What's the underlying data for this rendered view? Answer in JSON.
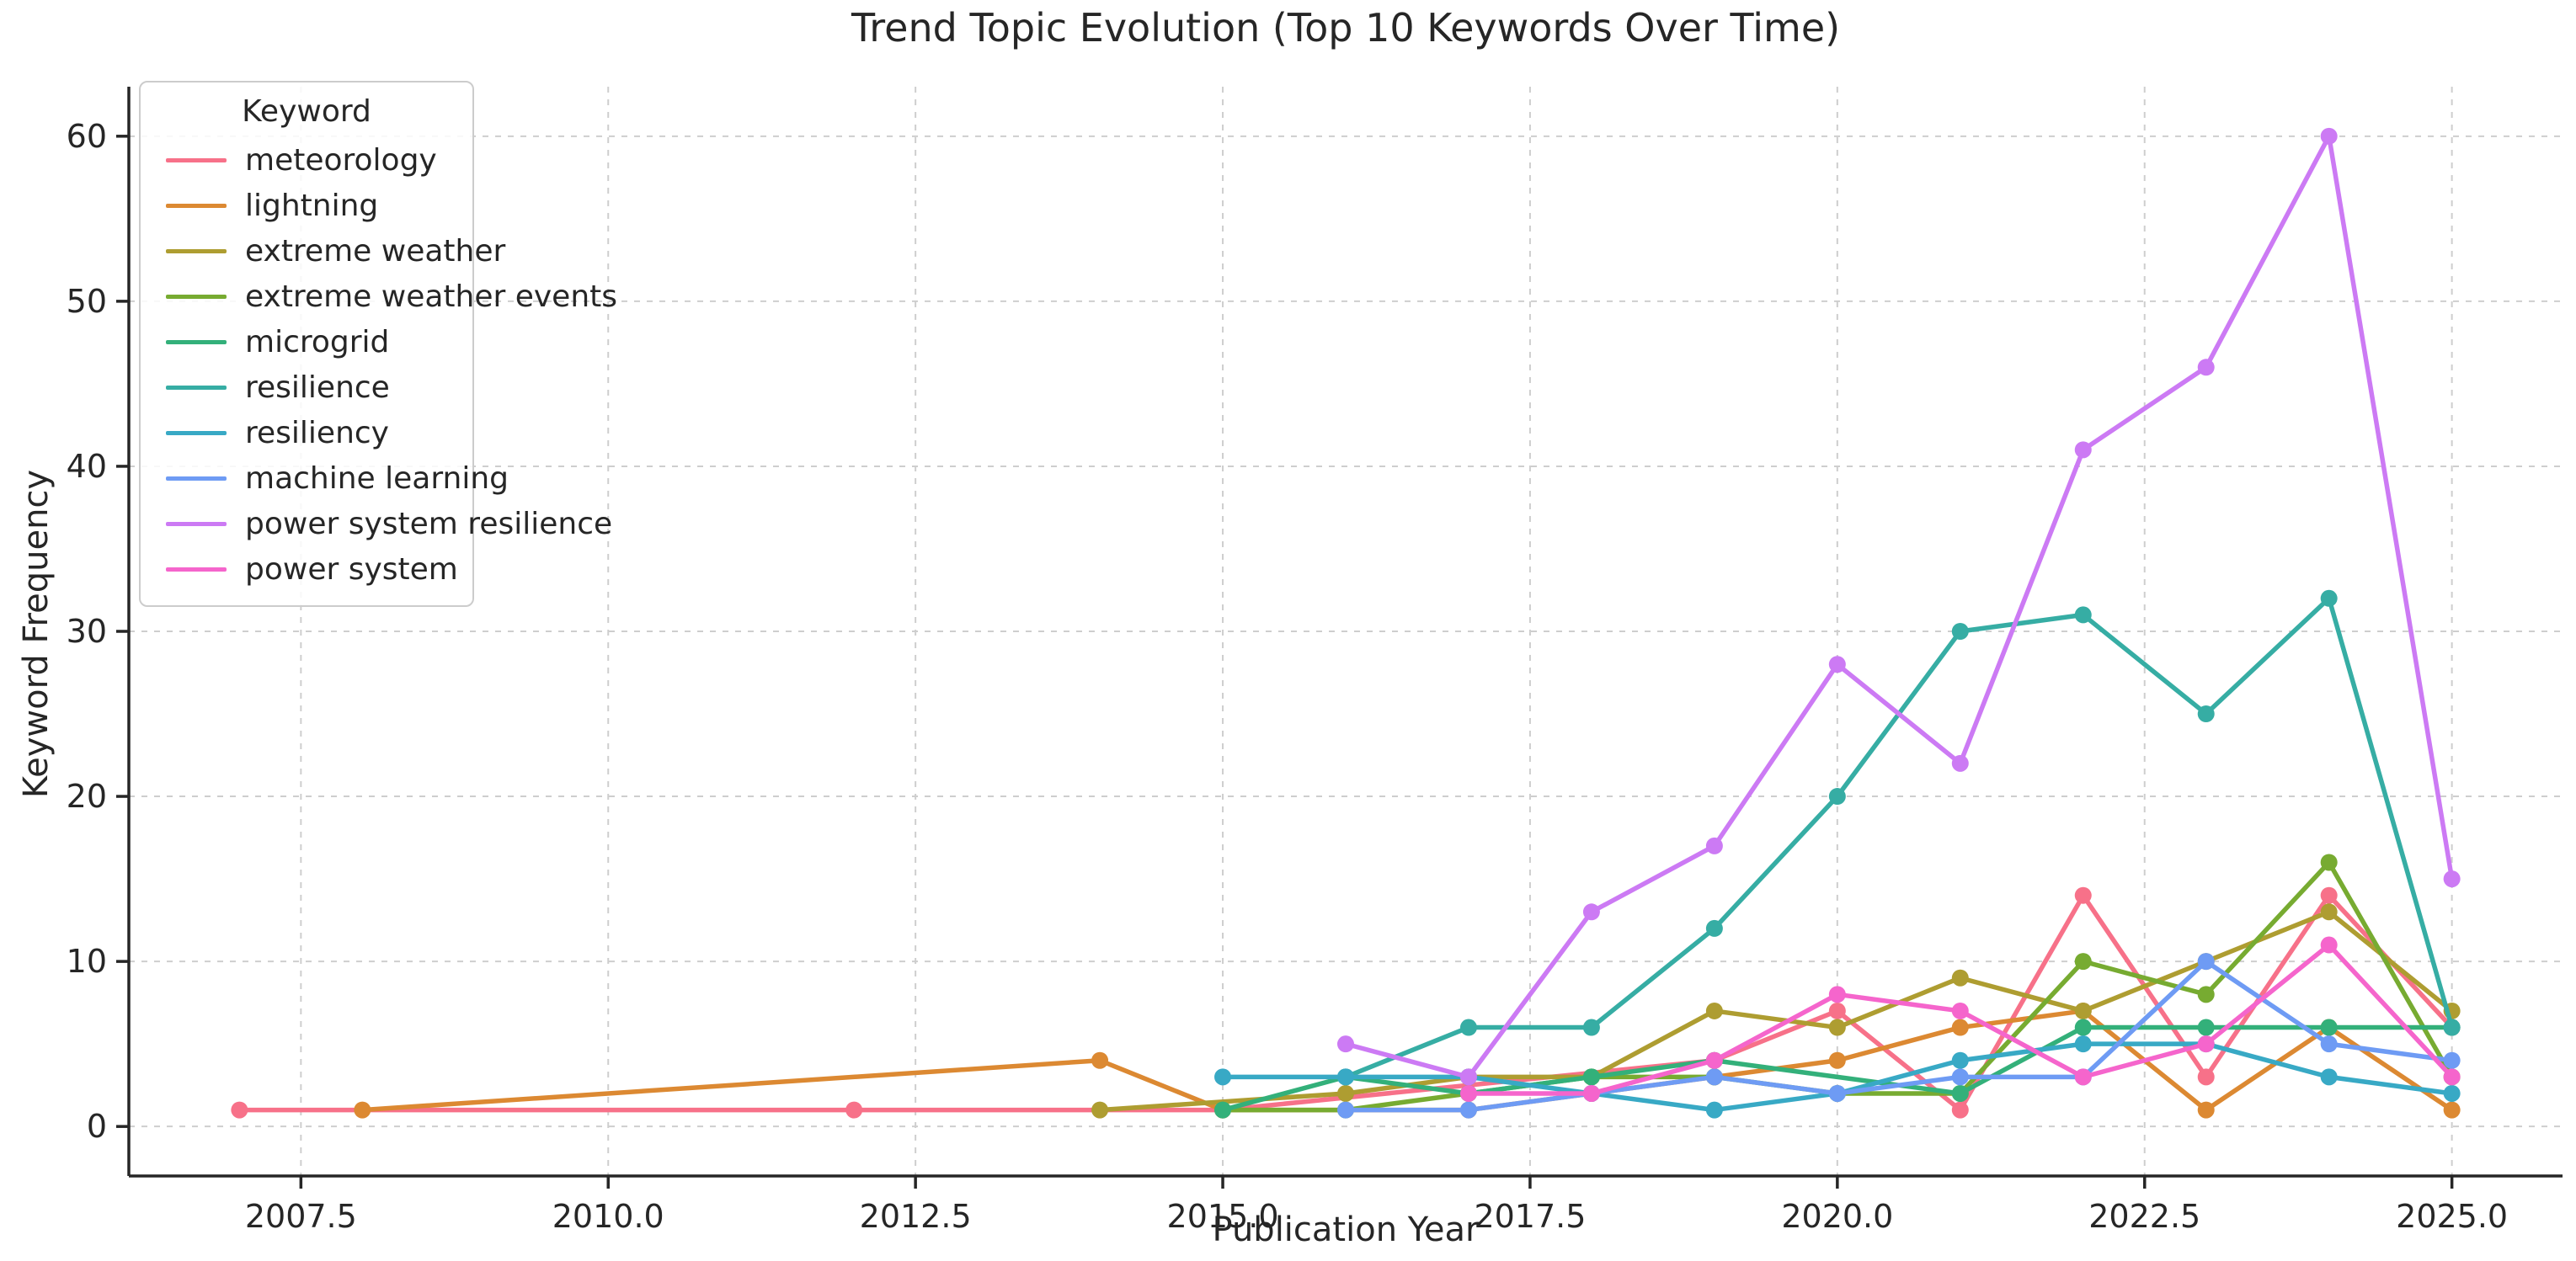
{
  "page": {
    "title": "Trend Topic Evolution (Top 10 Keywords Over Time)"
  },
  "chart_data": {
    "type": "line",
    "title": "Trend Topic Evolution (Top 10 Keywords Over Time)",
    "xlabel": "Publication Year",
    "ylabel": "Keyword Frequency",
    "legend_title": "Keyword",
    "legend_position": "upper left",
    "grid": true,
    "grid_style": "dashed",
    "xlim": [
      2006.1,
      2025.9
    ],
    "ylim": [
      -3,
      63
    ],
    "x_ticks": [
      2007.5,
      2010.0,
      2012.5,
      2015.0,
      2017.5,
      2020.0,
      2022.5,
      2025.0
    ],
    "x_tick_labels": [
      "2007.5",
      "2010.0",
      "2012.5",
      "2015.0",
      "2017.5",
      "2020.0",
      "2022.5",
      "2025.0"
    ],
    "y_ticks": [
      0,
      10,
      20,
      30,
      40,
      50,
      60
    ],
    "y_tick_labels": [
      "0",
      "10",
      "20",
      "30",
      "40",
      "50",
      "60"
    ],
    "series": [
      {
        "name": "meteorology",
        "color": "#f77189",
        "points": [
          [
            2007,
            1
          ],
          [
            2012,
            1
          ],
          [
            2015,
            1
          ],
          [
            2019,
            4
          ],
          [
            2020,
            7
          ],
          [
            2021,
            1
          ],
          [
            2022,
            14
          ],
          [
            2023,
            3
          ],
          [
            2024,
            14
          ],
          [
            2025,
            6
          ]
        ]
      },
      {
        "name": "lightning",
        "color": "#dc8932",
        "points": [
          [
            2008,
            1
          ],
          [
            2014,
            4
          ],
          [
            2015,
            1
          ],
          [
            2017,
            1
          ],
          [
            2018,
            2
          ],
          [
            2019,
            3
          ],
          [
            2020,
            4
          ],
          [
            2021,
            6
          ],
          [
            2022,
            7
          ],
          [
            2023,
            1
          ],
          [
            2024,
            6
          ],
          [
            2025,
            1
          ]
        ]
      },
      {
        "name": "extreme weather",
        "color": "#ae9d31",
        "points": [
          [
            2014,
            1
          ],
          [
            2016,
            2
          ],
          [
            2017,
            3
          ],
          [
            2018,
            3
          ],
          [
            2019,
            7
          ],
          [
            2020,
            6
          ],
          [
            2021,
            9
          ],
          [
            2022,
            7
          ],
          [
            2023,
            10
          ],
          [
            2024,
            13
          ],
          [
            2025,
            7
          ]
        ]
      },
      {
        "name": "extreme weather events",
        "color": "#77ab31",
        "points": [
          [
            2015,
            1
          ],
          [
            2016,
            1
          ],
          [
            2017,
            2
          ],
          [
            2018,
            3
          ],
          [
            2019,
            3
          ],
          [
            2020,
            2
          ],
          [
            2021,
            2
          ],
          [
            2022,
            10
          ],
          [
            2023,
            8
          ],
          [
            2024,
            16
          ],
          [
            2025,
            3
          ]
        ]
      },
      {
        "name": "microgrid",
        "color": "#33b07a",
        "points": [
          [
            2015,
            1
          ],
          [
            2016,
            3
          ],
          [
            2017,
            2
          ],
          [
            2018,
            3
          ],
          [
            2019,
            4
          ],
          [
            2021,
            2
          ],
          [
            2022,
            6
          ],
          [
            2023,
            6
          ],
          [
            2024,
            6
          ],
          [
            2025,
            6
          ]
        ]
      },
      {
        "name": "resilience",
        "color": "#36ada4",
        "points": [
          [
            2016,
            3
          ],
          [
            2017,
            6
          ],
          [
            2018,
            6
          ],
          [
            2019,
            12
          ],
          [
            2020,
            20
          ],
          [
            2021,
            30
          ],
          [
            2022,
            31
          ],
          [
            2023,
            25
          ],
          [
            2024,
            32
          ],
          [
            2025,
            6
          ]
        ]
      },
      {
        "name": "resiliency",
        "color": "#38a9c5",
        "points": [
          [
            2015,
            3
          ],
          [
            2016,
            3
          ],
          [
            2017,
            3
          ],
          [
            2018,
            2
          ],
          [
            2019,
            1
          ],
          [
            2020,
            2
          ],
          [
            2021,
            4
          ],
          [
            2022,
            5
          ],
          [
            2023,
            5
          ],
          [
            2024,
            3
          ],
          [
            2025,
            2
          ]
        ]
      },
      {
        "name": "machine learning",
        "color": "#6e9bf4",
        "points": [
          [
            2016,
            1
          ],
          [
            2017,
            1
          ],
          [
            2018,
            2
          ],
          [
            2019,
            3
          ],
          [
            2020,
            2
          ],
          [
            2021,
            3
          ],
          [
            2022,
            3
          ],
          [
            2023,
            10
          ],
          [
            2024,
            5
          ],
          [
            2025,
            4
          ]
        ]
      },
      {
        "name": "power system resilience",
        "color": "#cc7af4",
        "points": [
          [
            2016,
            5
          ],
          [
            2017,
            3
          ],
          [
            2018,
            13
          ],
          [
            2019,
            17
          ],
          [
            2020,
            28
          ],
          [
            2021,
            22
          ],
          [
            2022,
            41
          ],
          [
            2023,
            46
          ],
          [
            2024,
            60
          ],
          [
            2025,
            15
          ]
        ]
      },
      {
        "name": "power system",
        "color": "#f565cc",
        "points": [
          [
            2017,
            2
          ],
          [
            2018,
            2
          ],
          [
            2019,
            4
          ],
          [
            2020,
            8
          ],
          [
            2021,
            7
          ],
          [
            2022,
            3
          ],
          [
            2023,
            5
          ],
          [
            2024,
            11
          ],
          [
            2025,
            3
          ]
        ]
      }
    ],
    "style": {
      "axis_color": "#262626",
      "grid_color": "#c9c9c9",
      "background": "#ffffff",
      "line_width": 5.5,
      "marker_radius": 10
    }
  }
}
